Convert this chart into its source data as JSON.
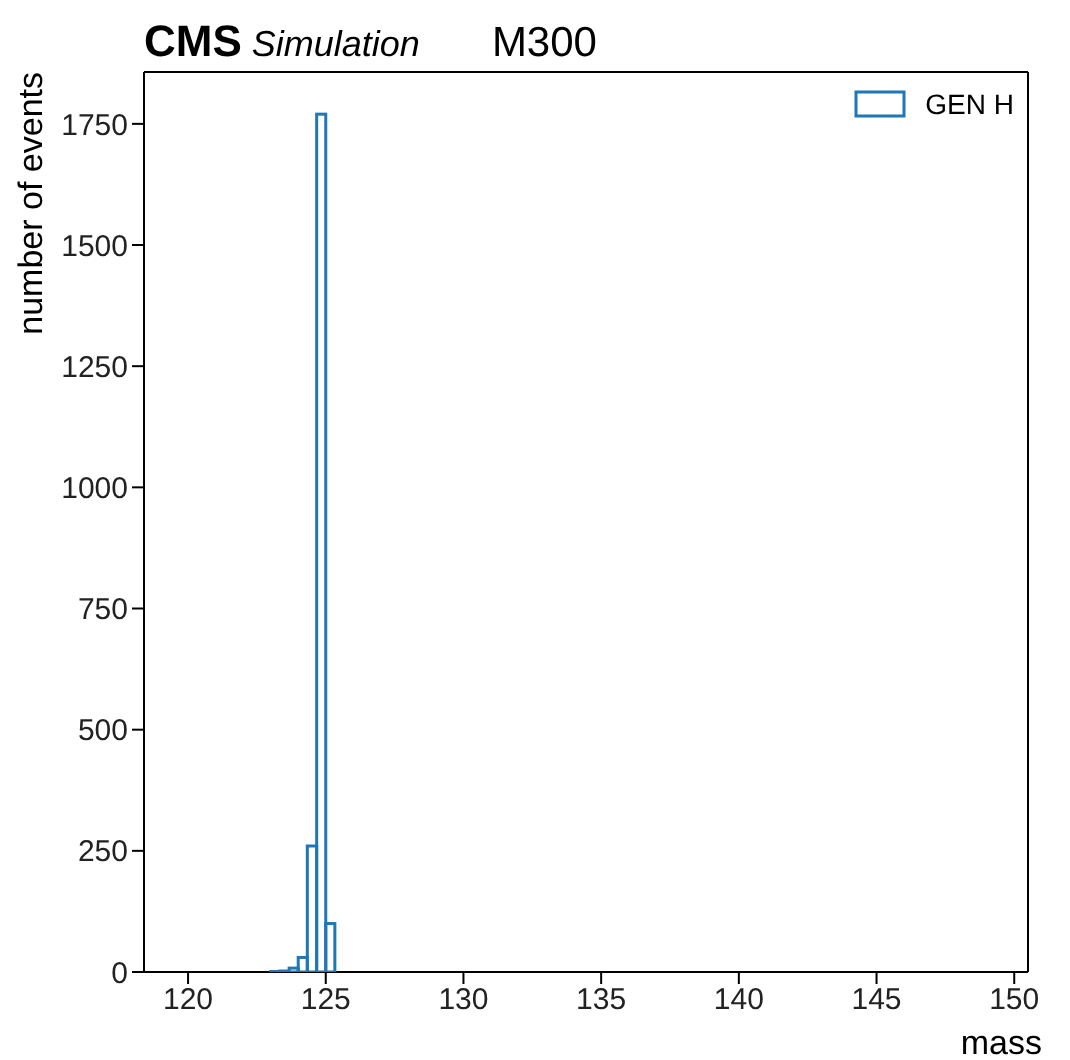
{
  "chart_data": {
    "type": "histogram",
    "title": "CMS",
    "subtitle": "Simulation",
    "annotations": [
      "M300"
    ],
    "xlabel": "mass",
    "ylabel": "number of events",
    "bins": [
      123.0,
      123.33,
      123.67,
      124.0,
      124.33,
      124.67,
      125.0,
      125.33
    ],
    "series": [
      {
        "name": "GEN H",
        "color": "#1f77b4",
        "values": [
          1,
          2,
          8,
          30,
          260,
          1770,
          100
        ]
      }
    ],
    "xlim": [
      118.4,
      150.5
    ],
    "xticks": [
      120,
      125,
      130,
      135,
      140,
      145,
      150
    ],
    "ylim": [
      0,
      1857
    ],
    "yticks": [
      0,
      250,
      500,
      750,
      1000,
      1250,
      1500,
      1750
    ],
    "legend": "top right"
  }
}
